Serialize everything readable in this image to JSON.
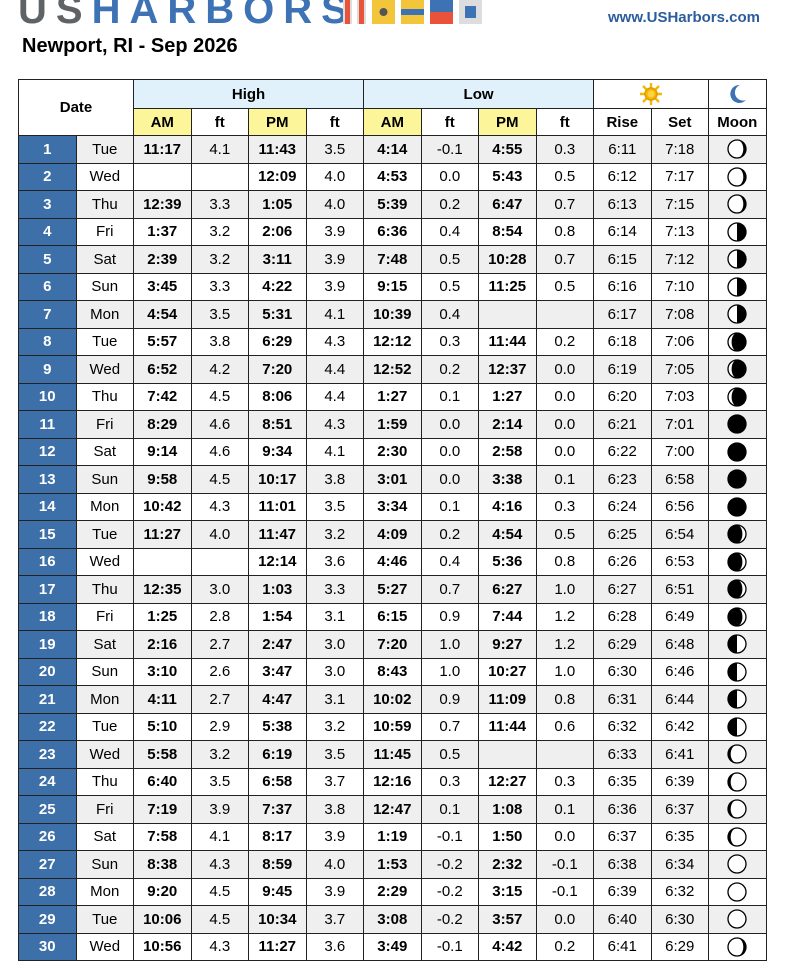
{
  "header": {
    "logo_us": "US",
    "logo_harbors": "HARBORS",
    "url": "www.USHarbors.com",
    "title": "Newport, RI - Sep 2026"
  },
  "colors": {
    "brand_blue": "#3d72b4",
    "date_cell": "#3d6fa8",
    "group_header": "#e1f1fb",
    "time_header": "#fdf59a",
    "sun": "#f5b700",
    "moon_icon": "#3d72b4"
  },
  "columns": {
    "date": "Date",
    "high": "High",
    "low": "Low",
    "am": "AM",
    "ft": "ft",
    "pm": "PM",
    "rise": "Rise",
    "set": "Set",
    "moon": "Moon",
    "sun_icon": "sun-icon",
    "moon_header_icon": "crescent-moon-icon"
  },
  "rows": [
    [
      "1",
      "Tue",
      "11:17",
      "4.1",
      "11:43",
      "3.5",
      "4:14",
      "-0.1",
      "4:55",
      "0.3",
      "6:11",
      "7:18"
    ],
    [
      "2",
      "Wed",
      "",
      "",
      "12:09",
      "4.0",
      "4:53",
      "0.0",
      "5:43",
      "0.5",
      "6:12",
      "7:17"
    ],
    [
      "3",
      "Thu",
      "12:39",
      "3.3",
      "1:05",
      "4.0",
      "5:39",
      "0.2",
      "6:47",
      "0.7",
      "6:13",
      "7:15"
    ],
    [
      "4",
      "Fri",
      "1:37",
      "3.2",
      "2:06",
      "3.9",
      "6:36",
      "0.4",
      "8:54",
      "0.8",
      "6:14",
      "7:13"
    ],
    [
      "5",
      "Sat",
      "2:39",
      "3.2",
      "3:11",
      "3.9",
      "7:48",
      "0.5",
      "10:28",
      "0.7",
      "6:15",
      "7:12"
    ],
    [
      "6",
      "Sun",
      "3:45",
      "3.3",
      "4:22",
      "3.9",
      "9:15",
      "0.5",
      "11:25",
      "0.5",
      "6:16",
      "7:10"
    ],
    [
      "7",
      "Mon",
      "4:54",
      "3.5",
      "5:31",
      "4.1",
      "10:39",
      "0.4",
      "",
      "",
      "6:17",
      "7:08"
    ],
    [
      "8",
      "Tue",
      "5:57",
      "3.8",
      "6:29",
      "4.3",
      "12:12",
      "0.3",
      "11:44",
      "0.2",
      "6:18",
      "7:06"
    ],
    [
      "9",
      "Wed",
      "6:52",
      "4.2",
      "7:20",
      "4.4",
      "12:52",
      "0.2",
      "12:37",
      "0.0",
      "6:19",
      "7:05"
    ],
    [
      "10",
      "Thu",
      "7:42",
      "4.5",
      "8:06",
      "4.4",
      "1:27",
      "0.1",
      "1:27",
      "0.0",
      "6:20",
      "7:03"
    ],
    [
      "11",
      "Fri",
      "8:29",
      "4.6",
      "8:51",
      "4.3",
      "1:59",
      "0.0",
      "2:14",
      "0.0",
      "6:21",
      "7:01"
    ],
    [
      "12",
      "Sat",
      "9:14",
      "4.6",
      "9:34",
      "4.1",
      "2:30",
      "0.0",
      "2:58",
      "0.0",
      "6:22",
      "7:00"
    ],
    [
      "13",
      "Sun",
      "9:58",
      "4.5",
      "10:17",
      "3.8",
      "3:01",
      "0.0",
      "3:38",
      "0.1",
      "6:23",
      "6:58"
    ],
    [
      "14",
      "Mon",
      "10:42",
      "4.3",
      "11:01",
      "3.5",
      "3:34",
      "0.1",
      "4:16",
      "0.3",
      "6:24",
      "6:56"
    ],
    [
      "15",
      "Tue",
      "11:27",
      "4.0",
      "11:47",
      "3.2",
      "4:09",
      "0.2",
      "4:54",
      "0.5",
      "6:25",
      "6:54"
    ],
    [
      "16",
      "Wed",
      "",
      "",
      "12:14",
      "3.6",
      "4:46",
      "0.4",
      "5:36",
      "0.8",
      "6:26",
      "6:53"
    ],
    [
      "17",
      "Thu",
      "12:35",
      "3.0",
      "1:03",
      "3.3",
      "5:27",
      "0.7",
      "6:27",
      "1.0",
      "6:27",
      "6:51"
    ],
    [
      "18",
      "Fri",
      "1:25",
      "2.8",
      "1:54",
      "3.1",
      "6:15",
      "0.9",
      "7:44",
      "1.2",
      "6:28",
      "6:49"
    ],
    [
      "19",
      "Sat",
      "2:16",
      "2.7",
      "2:47",
      "3.0",
      "7:20",
      "1.0",
      "9:27",
      "1.2",
      "6:29",
      "6:48"
    ],
    [
      "20",
      "Sun",
      "3:10",
      "2.6",
      "3:47",
      "3.0",
      "8:43",
      "1.0",
      "10:27",
      "1.0",
      "6:30",
      "6:46"
    ],
    [
      "21",
      "Mon",
      "4:11",
      "2.7",
      "4:47",
      "3.1",
      "10:02",
      "0.9",
      "11:09",
      "0.8",
      "6:31",
      "6:44"
    ],
    [
      "22",
      "Tue",
      "5:10",
      "2.9",
      "5:38",
      "3.2",
      "10:59",
      "0.7",
      "11:44",
      "0.6",
      "6:32",
      "6:42"
    ],
    [
      "23",
      "Wed",
      "5:58",
      "3.2",
      "6:19",
      "3.5",
      "11:45",
      "0.5",
      "",
      "",
      "6:33",
      "6:41"
    ],
    [
      "24",
      "Thu",
      "6:40",
      "3.5",
      "6:58",
      "3.7",
      "12:16",
      "0.3",
      "12:27",
      "0.3",
      "6:35",
      "6:39"
    ],
    [
      "25",
      "Fri",
      "7:19",
      "3.9",
      "7:37",
      "3.8",
      "12:47",
      "0.1",
      "1:08",
      "0.1",
      "6:36",
      "6:37"
    ],
    [
      "26",
      "Sat",
      "7:58",
      "4.1",
      "8:17",
      "3.9",
      "1:19",
      "-0.1",
      "1:50",
      "0.0",
      "6:37",
      "6:35"
    ],
    [
      "27",
      "Sun",
      "8:38",
      "4.3",
      "8:59",
      "4.0",
      "1:53",
      "-0.2",
      "2:32",
      "-0.1",
      "6:38",
      "6:34"
    ],
    [
      "28",
      "Mon",
      "9:20",
      "4.5",
      "9:45",
      "3.9",
      "2:29",
      "-0.2",
      "3:15",
      "-0.1",
      "6:39",
      "6:32"
    ],
    [
      "29",
      "Tue",
      "10:06",
      "4.5",
      "10:34",
      "3.7",
      "3:08",
      "-0.2",
      "3:57",
      "0.0",
      "6:40",
      "6:30"
    ],
    [
      "30",
      "Wed",
      "10:56",
      "4.3",
      "11:27",
      "3.6",
      "3:49",
      "-0.1",
      "4:42",
      "0.2",
      "6:41",
      "6:29"
    ]
  ],
  "moon_phases": [
    {
      "lit": 0.85,
      "lit_side": "left"
    },
    {
      "lit": 0.85,
      "lit_side": "left"
    },
    {
      "lit": 0.85,
      "lit_side": "left"
    },
    {
      "lit": 0.5,
      "lit_side": "left"
    },
    {
      "lit": 0.5,
      "lit_side": "left"
    },
    {
      "lit": 0.5,
      "lit_side": "left"
    },
    {
      "lit": 0.5,
      "lit_side": "left"
    },
    {
      "lit": 0.2,
      "lit_side": "left"
    },
    {
      "lit": 0.2,
      "lit_side": "left"
    },
    {
      "lit": 0.2,
      "lit_side": "left"
    },
    {
      "lit": 0,
      "lit_side": "left"
    },
    {
      "lit": 0,
      "lit_side": "left"
    },
    {
      "lit": 0,
      "lit_side": "left"
    },
    {
      "lit": 0,
      "lit_side": "left"
    },
    {
      "lit": 0.2,
      "lit_side": "right"
    },
    {
      "lit": 0.2,
      "lit_side": "right"
    },
    {
      "lit": 0.2,
      "lit_side": "right"
    },
    {
      "lit": 0.2,
      "lit_side": "right"
    },
    {
      "lit": 0.5,
      "lit_side": "right"
    },
    {
      "lit": 0.5,
      "lit_side": "right"
    },
    {
      "lit": 0.5,
      "lit_side": "right"
    },
    {
      "lit": 0.5,
      "lit_side": "right"
    },
    {
      "lit": 0.85,
      "lit_side": "right"
    },
    {
      "lit": 0.85,
      "lit_side": "right"
    },
    {
      "lit": 0.85,
      "lit_side": "right"
    },
    {
      "lit": 0.85,
      "lit_side": "right"
    },
    {
      "lit": 1,
      "lit_side": "right"
    },
    {
      "lit": 1,
      "lit_side": "right"
    },
    {
      "lit": 1,
      "lit_side": "right"
    },
    {
      "lit": 0.85,
      "lit_side": "left"
    }
  ]
}
